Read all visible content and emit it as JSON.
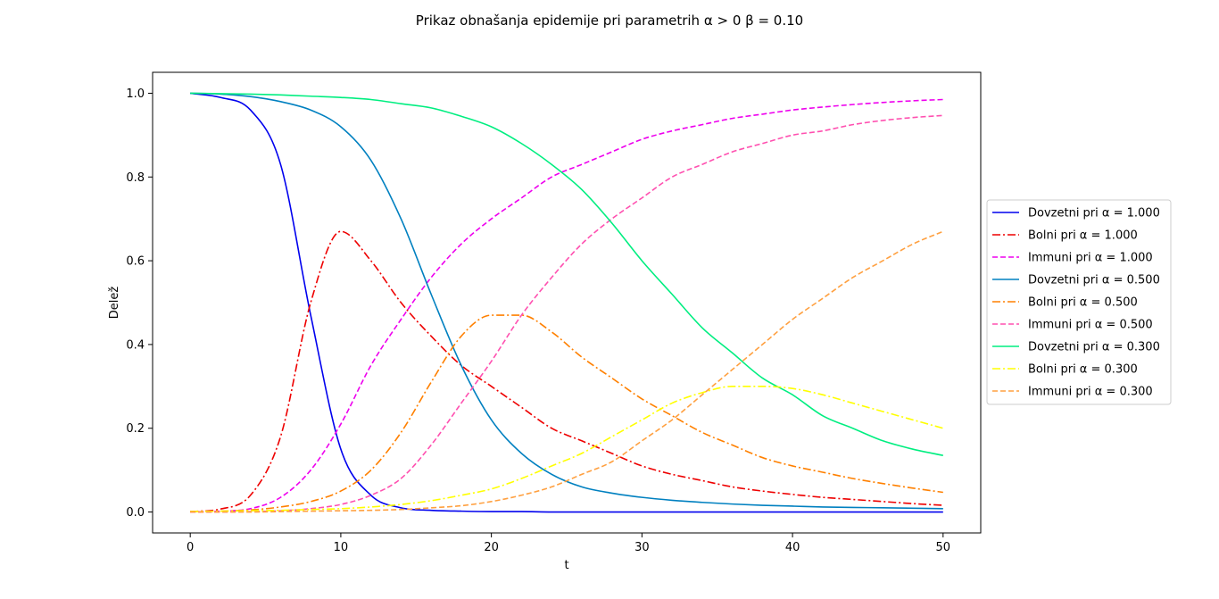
{
  "chart_data": {
    "type": "line",
    "title": "Prikaz obnašanja epidemije pri parametrih α > 0 β = 0.10",
    "xlabel": "t",
    "ylabel": "Delež",
    "xlim": [
      -2.5,
      52.5
    ],
    "ylim": [
      -0.05,
      1.05
    ],
    "xticks": [
      0,
      10,
      20,
      30,
      40,
      50
    ],
    "yticks": [
      0.0,
      0.2,
      0.4,
      0.6,
      0.8,
      1.0
    ],
    "xtick_labels": [
      "0",
      "10",
      "20",
      "30",
      "40",
      "50"
    ],
    "ytick_labels": [
      "0.0",
      "0.2",
      "0.4",
      "0.6",
      "0.8",
      "1.0"
    ],
    "grid": false,
    "legend_position": "right, outside plot area",
    "x": [
      0,
      2,
      4,
      6,
      8,
      10,
      12,
      14,
      16,
      18,
      20,
      22,
      24,
      26,
      28,
      30,
      32,
      34,
      36,
      38,
      40,
      42,
      44,
      46,
      48,
      50
    ],
    "series": [
      {
        "name": "Dovzetni pri α = 1.000",
        "color": "#0000ee",
        "dash": "solid",
        "values": [
          1.0,
          0.99,
          0.96,
          0.83,
          0.47,
          0.15,
          0.04,
          0.01,
          0.004,
          0.002,
          0.001,
          0.001,
          0.0,
          0.0,
          0.0,
          0.0,
          0.0,
          0.0,
          0.0,
          0.0,
          0.0,
          0.0,
          0.0,
          0.0,
          0.0,
          0.0
        ]
      },
      {
        "name": "Bolni pri α = 1.000",
        "color": "#ee0000",
        "dash": "dashdot",
        "values": [
          0.001,
          0.007,
          0.04,
          0.18,
          0.5,
          0.67,
          0.6,
          0.5,
          0.42,
          0.35,
          0.3,
          0.25,
          0.2,
          0.17,
          0.14,
          0.11,
          0.09,
          0.075,
          0.06,
          0.05,
          0.042,
          0.035,
          0.03,
          0.025,
          0.02,
          0.016
        ]
      },
      {
        "name": "Immuni pri α = 1.000",
        "color": "#ee00ee",
        "dash": "dashed",
        "values": [
          0.0,
          0.002,
          0.008,
          0.035,
          0.1,
          0.21,
          0.35,
          0.46,
          0.56,
          0.64,
          0.7,
          0.75,
          0.8,
          0.83,
          0.86,
          0.89,
          0.91,
          0.925,
          0.94,
          0.95,
          0.96,
          0.967,
          0.973,
          0.978,
          0.982,
          0.985
        ]
      },
      {
        "name": "Dovzetni pri α = 0.500",
        "color": "#0080c0",
        "dash": "solid",
        "values": [
          1.0,
          0.998,
          0.992,
          0.98,
          0.96,
          0.92,
          0.84,
          0.7,
          0.52,
          0.35,
          0.22,
          0.14,
          0.09,
          0.06,
          0.045,
          0.035,
          0.028,
          0.023,
          0.019,
          0.016,
          0.014,
          0.012,
          0.011,
          0.01,
          0.009,
          0.008
        ]
      },
      {
        "name": "Bolni pri α = 0.500",
        "color": "#ff8000",
        "dash": "dashdot",
        "values": [
          0.001,
          0.002,
          0.005,
          0.012,
          0.025,
          0.05,
          0.1,
          0.19,
          0.31,
          0.42,
          0.47,
          0.47,
          0.43,
          0.37,
          0.32,
          0.27,
          0.23,
          0.19,
          0.16,
          0.13,
          0.11,
          0.095,
          0.08,
          0.068,
          0.057,
          0.047
        ]
      },
      {
        "name": "Immuni pri α = 0.500",
        "color": "#ff50b0",
        "dash": "dashed",
        "values": [
          0.0,
          0.0,
          0.001,
          0.003,
          0.008,
          0.018,
          0.04,
          0.08,
          0.16,
          0.26,
          0.36,
          0.47,
          0.56,
          0.64,
          0.7,
          0.75,
          0.8,
          0.83,
          0.86,
          0.88,
          0.9,
          0.91,
          0.925,
          0.935,
          0.942,
          0.947
        ]
      },
      {
        "name": "Dovzetni pri α = 0.300",
        "color": "#00ee80",
        "dash": "solid",
        "values": [
          1.0,
          0.999,
          0.998,
          0.996,
          0.993,
          0.99,
          0.985,
          0.975,
          0.965,
          0.945,
          0.92,
          0.88,
          0.83,
          0.77,
          0.69,
          0.6,
          0.52,
          0.44,
          0.38,
          0.32,
          0.28,
          0.23,
          0.2,
          0.17,
          0.15,
          0.135
        ]
      },
      {
        "name": "Bolni pri α = 0.300",
        "color": "#ffff00",
        "dash": "dashdot",
        "values": [
          0.001,
          0.002,
          0.003,
          0.004,
          0.006,
          0.008,
          0.012,
          0.018,
          0.027,
          0.04,
          0.055,
          0.08,
          0.11,
          0.14,
          0.18,
          0.22,
          0.26,
          0.285,
          0.3,
          0.3,
          0.295,
          0.28,
          0.26,
          0.24,
          0.22,
          0.2
        ]
      },
      {
        "name": "Immuni pri α = 0.300",
        "color": "#ffa040",
        "dash": "dashed",
        "values": [
          0.0,
          0.0,
          0.0,
          0.001,
          0.002,
          0.003,
          0.004,
          0.006,
          0.01,
          0.015,
          0.025,
          0.04,
          0.06,
          0.09,
          0.12,
          0.17,
          0.22,
          0.28,
          0.34,
          0.4,
          0.46,
          0.51,
          0.56,
          0.6,
          0.64,
          0.67
        ]
      }
    ]
  }
}
